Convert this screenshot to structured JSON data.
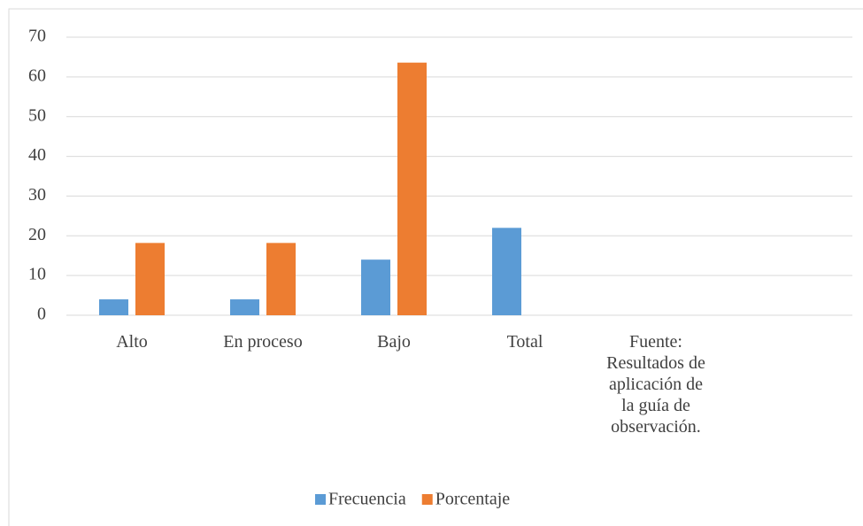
{
  "chart_data": {
    "type": "bar",
    "categories": [
      "Alto",
      "En proceso",
      "Bajo",
      "Total",
      "Fuente: Resultados de aplicación de la guía de observación.",
      null
    ],
    "series": [
      {
        "name": "Frecuencia",
        "color": "#5b9bd5",
        "values": [
          4,
          4,
          14,
          22,
          null,
          null
        ]
      },
      {
        "name": "Porcentaje",
        "color": "#ed7d31",
        "values": [
          18.2,
          18.2,
          63.6,
          null,
          null,
          null
        ]
      }
    ],
    "ylim": [
      0,
      70
    ],
    "yticks": [
      0,
      10,
      20,
      30,
      40,
      50,
      60,
      70
    ],
    "grid": true,
    "legend": "bottom"
  }
}
